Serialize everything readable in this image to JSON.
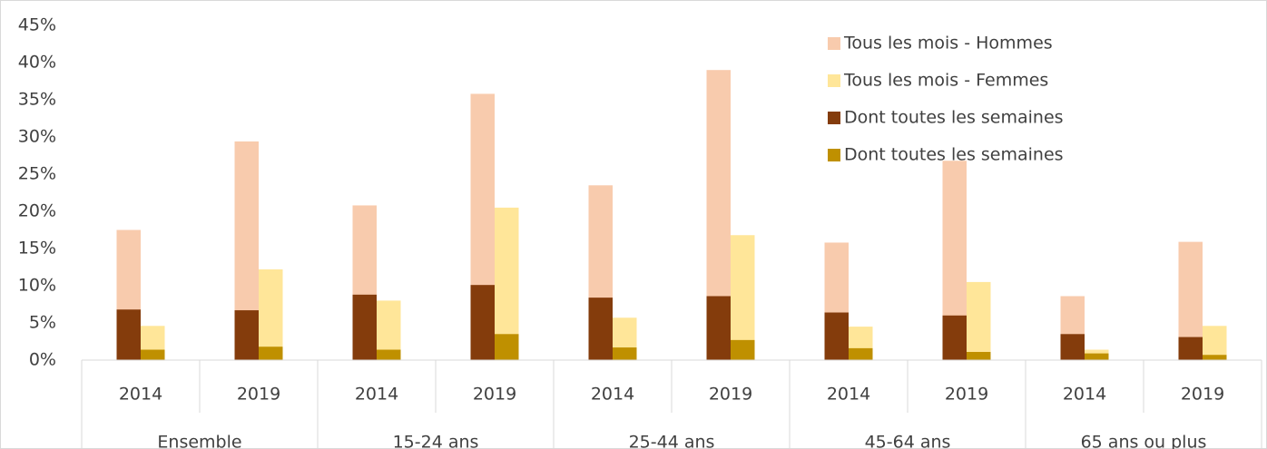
{
  "chart_data": {
    "type": "bar",
    "categories": [
      "2014",
      "2019",
      "2014",
      "2019",
      "2014",
      "2019",
      "2014",
      "2019",
      "2014",
      "2019"
    ],
    "groups": [
      "Ensemble",
      "15-24 ans",
      "25-44 ans",
      "45-64 ans",
      "65 ans ou plus"
    ],
    "series": [
      {
        "name": "Tous les mois - Hommes",
        "color": "#F8CBAD",
        "values": [
          17.5,
          29.4,
          20.8,
          35.8,
          23.5,
          39.0,
          15.8,
          26.8,
          8.6,
          15.9
        ]
      },
      {
        "name": "Tous les mois - Femmes",
        "color": "#FFE699",
        "values": [
          4.6,
          12.2,
          8.0,
          20.5,
          5.7,
          16.8,
          4.5,
          10.5,
          1.4,
          4.6
        ]
      },
      {
        "name": "Dont toutes les semaines",
        "color": "#843C0C",
        "values": [
          6.8,
          6.7,
          8.8,
          10.1,
          8.4,
          8.6,
          6.4,
          6.0,
          3.5,
          3.1
        ]
      },
      {
        "name": "Dont toutes les semaines",
        "color": "#BF9000",
        "values": [
          1.4,
          1.8,
          1.4,
          3.5,
          1.7,
          2.7,
          1.6,
          1.1,
          0.9,
          0.7
        ]
      }
    ],
    "ylim": [
      0,
      45
    ],
    "yticks": [
      {
        "value": 0,
        "label": "0%"
      },
      {
        "value": 5,
        "label": "5%"
      },
      {
        "value": 10,
        "label": "10%"
      },
      {
        "value": 15,
        "label": "15%"
      },
      {
        "value": 20,
        "label": "20%"
      },
      {
        "value": 25,
        "label": "25%"
      },
      {
        "value": 30,
        "label": "30%"
      },
      {
        "value": 35,
        "label": "35%"
      },
      {
        "value": 40,
        "label": "40%"
      },
      {
        "value": 45,
        "label": "45%"
      }
    ],
    "legend": "top-right",
    "grid": false
  }
}
